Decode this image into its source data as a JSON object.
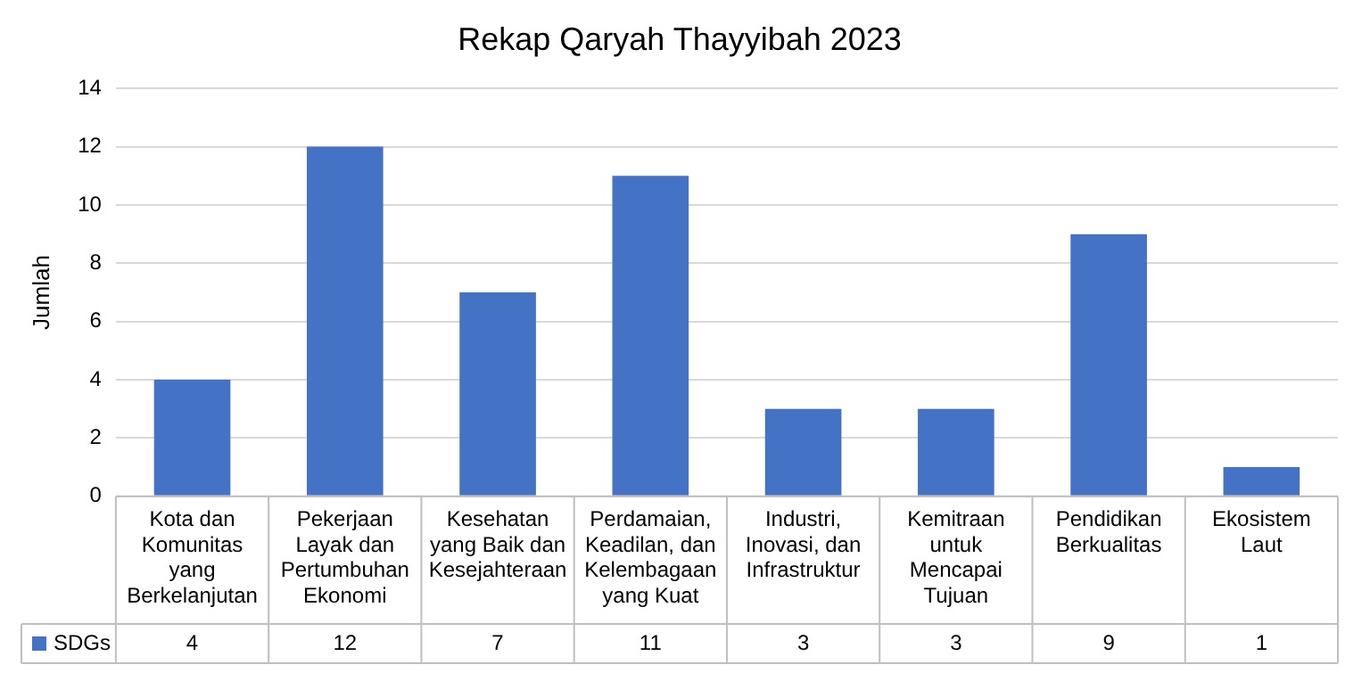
{
  "chart_data": {
    "type": "bar",
    "title": "Rekap Qaryah Thayyibah 2023",
    "ylabel": "Jumlah",
    "categories": [
      "Kota dan Komunitas yang Berkelanjutan",
      "Pekerjaan Layak dan Pertumbuhan Ekonomi",
      "Kesehatan yang Baik dan Kesejahteraan",
      "Perdamaian, Keadilan, dan Kelembagaan yang Kuat",
      "Industri, Inovasi, dan Infrastruktur",
      "Kemitraan untuk Mencapai Tujuan",
      "Pendidikan Berkualitas",
      "Ekosistem Laut"
    ],
    "series": [
      {
        "name": "SDGs",
        "color": "#4472c4",
        "values": [
          4,
          12,
          7,
          11,
          3,
          3,
          9,
          1
        ]
      }
    ],
    "ylim": [
      0,
      14
    ],
    "yticks": [
      0,
      2,
      4,
      6,
      8,
      10,
      12,
      14
    ],
    "grid": "y",
    "legend": "bottom",
    "data_labels": true
  }
}
